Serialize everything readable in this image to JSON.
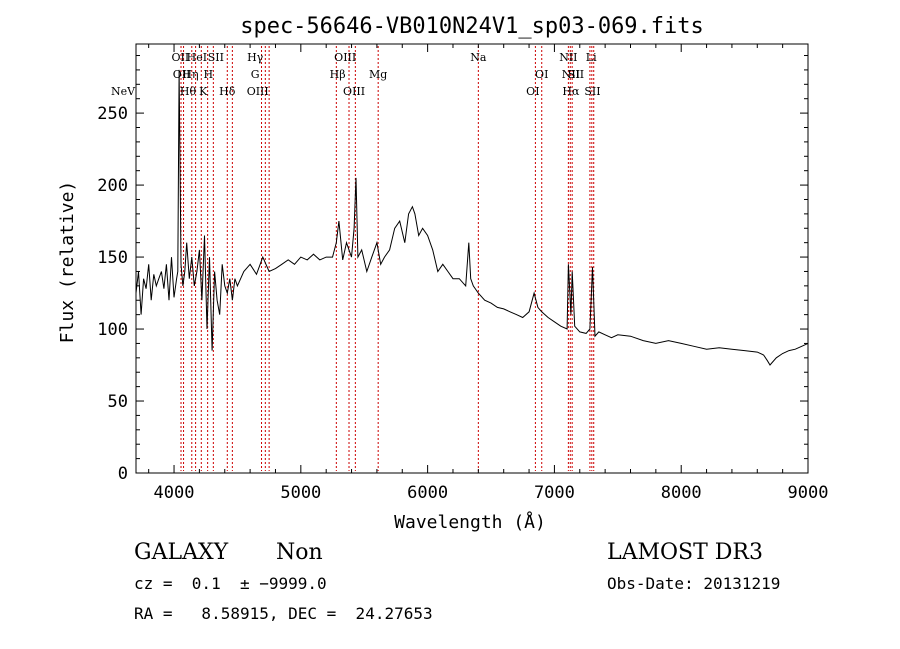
{
  "chart_data": {
    "type": "line",
    "title": "spec-56646-VB010N24V1_sp03-069.fits",
    "xlabel": "Wavelength (Å)",
    "ylabel": "Flux (relative)",
    "xlim": [
      3700,
      9000
    ],
    "ylim": [
      0,
      298
    ],
    "x_ticks": [
      4000,
      5000,
      6000,
      7000,
      8000,
      9000
    ],
    "y_ticks": [
      0,
      50,
      100,
      150,
      200,
      250
    ],
    "grid": false,
    "line_color": "#000000",
    "marker_color": "#cc0000",
    "series": [
      {
        "x": [
          3700,
          3720,
          3740,
          3760,
          3780,
          3800,
          3820,
          3840,
          3860,
          3880,
          3900,
          3920,
          3940,
          3960,
          3980,
          4000,
          4020,
          4030,
          4040,
          4055,
          4070,
          4085,
          4100,
          4120,
          4140,
          4160,
          4180,
          4200,
          4220,
          4240,
          4260,
          4280,
          4300,
          4320,
          4340,
          4360,
          4380,
          4400,
          4420,
          4440,
          4460,
          4480,
          4500,
          4550,
          4600,
          4650,
          4700,
          4750,
          4800,
          4850,
          4900,
          4950,
          5000,
          5050,
          5100,
          5150,
          5200,
          5250,
          5280,
          5300,
          5330,
          5360,
          5400,
          5420,
          5435,
          5450,
          5480,
          5520,
          5560,
          5600,
          5630,
          5660,
          5700,
          5740,
          5780,
          5820,
          5850,
          5880,
          5900,
          5930,
          5960,
          6000,
          6040,
          6080,
          6120,
          6160,
          6200,
          6250,
          6300,
          6325,
          6340,
          6360,
          6400,
          6450,
          6500,
          6550,
          6600,
          6650,
          6700,
          6750,
          6800,
          6840,
          6870,
          6900,
          6950,
          7000,
          7050,
          7100,
          7110,
          7130,
          7140,
          7160,
          7200,
          7250,
          7280,
          7300,
          7320,
          7350,
          7400,
          7450,
          7500,
          7600,
          7700,
          7800,
          7900,
          8000,
          8100,
          8200,
          8300,
          8400,
          8500,
          8600,
          8650,
          8680,
          8700,
          8750,
          8800,
          8850,
          8900,
          8950,
          9000
        ],
        "y": [
          125,
          140,
          110,
          135,
          128,
          145,
          120,
          138,
          130,
          135,
          140,
          128,
          145,
          120,
          150,
          122,
          135,
          140,
          280,
          145,
          130,
          140,
          160,
          135,
          150,
          130,
          140,
          155,
          120,
          165,
          100,
          150,
          85,
          140,
          120,
          110,
          145,
          130,
          125,
          135,
          120,
          135,
          130,
          140,
          145,
          138,
          150,
          140,
          142,
          145,
          148,
          145,
          150,
          148,
          152,
          148,
          150,
          150,
          160,
          175,
          148,
          160,
          150,
          170,
          205,
          150,
          155,
          140,
          150,
          160,
          145,
          150,
          155,
          170,
          175,
          160,
          180,
          185,
          180,
          165,
          170,
          165,
          155,
          140,
          145,
          140,
          135,
          135,
          130,
          160,
          135,
          130,
          125,
          120,
          118,
          115,
          114,
          112,
          110,
          108,
          112,
          125,
          115,
          112,
          108,
          105,
          102,
          100,
          145,
          110,
          140,
          102,
          98,
          97,
          100,
          143,
          95,
          98,
          96,
          94,
          96,
          95,
          92,
          90,
          92,
          90,
          88,
          86,
          87,
          86,
          85,
          84,
          82,
          78,
          75,
          80,
          83,
          85,
          86,
          88,
          90
        ]
      }
    ],
    "line_markers": [
      {
        "label": "NeV",
        "x": 3426,
        "row": 3
      },
      {
        "label": "OII",
        "x": 4050,
        "row": 1
      },
      {
        "label": "OII",
        "x": 4060,
        "row": 2
      },
      {
        "label": "Hθ",
        "x": 4110,
        "row": 3
      },
      {
        "label": "Hη",
        "x": 4130,
        "row": 2
      },
      {
        "label": "HeI",
        "x": 4180,
        "row": 1
      },
      {
        "label": "K",
        "x": 4230,
        "row": 3
      },
      {
        "label": "H",
        "x": 4270,
        "row": 2
      },
      {
        "label": "SII",
        "x": 4330,
        "row": 1
      },
      {
        "label": "Hδ",
        "x": 4420,
        "row": 3
      },
      {
        "label": "Hγ",
        "x": 4640,
        "row": 1
      },
      {
        "label": "G",
        "x": 4640,
        "row": 2
      },
      {
        "label": "OIII",
        "x": 4660,
        "row": 3
      },
      {
        "label": "Hβ",
        "x": 5290,
        "row": 2
      },
      {
        "label": "OIII",
        "x": 5350,
        "row": 1
      },
      {
        "label": "OIII",
        "x": 5420,
        "row": 3
      },
      {
        "label": "Mg",
        "x": 5610,
        "row": 2
      },
      {
        "label": "Na",
        "x": 6400,
        "row": 1
      },
      {
        "label": "OI",
        "x": 6900,
        "row": 2
      },
      {
        "label": "OI",
        "x": 6830,
        "row": 3
      },
      {
        "label": "NII",
        "x": 7110,
        "row": 1
      },
      {
        "label": "NII",
        "x": 7130,
        "row": 2
      },
      {
        "label": "Hα",
        "x": 7130,
        "row": 3
      },
      {
        "label": "SII",
        "x": 7170,
        "row": 2
      },
      {
        "label": "SII",
        "x": 7300,
        "row": 3
      },
      {
        "label": "Li",
        "x": 7290,
        "row": 1
      }
    ],
    "marker_lines_x": [
      4055,
      4075,
      4140,
      4170,
      4215,
      4265,
      4310,
      4420,
      4460,
      4690,
      4720,
      4750,
      5280,
      5380,
      5430,
      5610,
      6400,
      6850,
      6900,
      7110,
      7125,
      7140,
      7280,
      7295,
      7310
    ]
  },
  "info": {
    "object_class": "GALAXY",
    "subclass": "Non",
    "survey": "LAMOST DR3",
    "redshift": "cz =  0.1  ± −9999.0",
    "obs_date": "Obs-Date: 20131219",
    "coords": "RA =   8.58915, DEC =  24.27653"
  }
}
